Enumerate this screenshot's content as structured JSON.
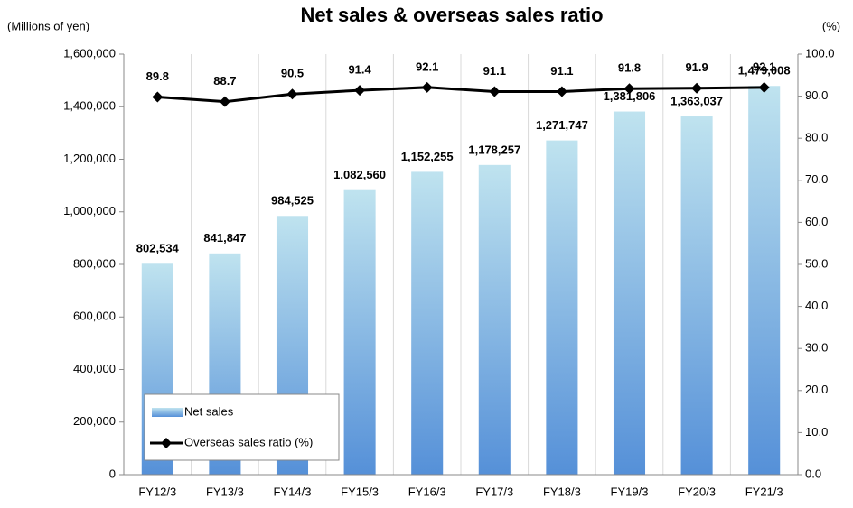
{
  "chart_data": {
    "type": "bar_line",
    "title": "Net sales & overseas sales ratio",
    "y_label": "(Millions of yen)",
    "y2_label": "(%)",
    "categories": [
      "FY12/3",
      "FY13/3",
      "FY14/3",
      "FY15/3",
      "FY16/3",
      "FY17/3",
      "FY18/3",
      "FY19/3",
      "FY20/3",
      "FY21/3"
    ],
    "series": [
      {
        "name": "Net sales",
        "type": "bar",
        "color": "#5590d8",
        "values": [
          802534,
          841847,
          984525,
          1082560,
          1152255,
          1178257,
          1271747,
          1381806,
          1363037,
          1479008
        ],
        "value_labels": [
          "802,534",
          "841,847",
          "984,525",
          "1,082,560",
          "1,152,255",
          "1,178,257",
          "1,271,747",
          "1,381,806",
          "1,363,037",
          "1,479,008"
        ]
      },
      {
        "name": "Overseas sales ratio (%)",
        "type": "line",
        "axis": "y2",
        "color": "#000000",
        "values": [
          89.8,
          88.7,
          90.5,
          91.4,
          92.1,
          91.1,
          91.1,
          91.8,
          91.9,
          92.1
        ]
      }
    ],
    "ylim": [
      0,
      1600000
    ],
    "yticks": [
      0,
      {
        "value": 200000,
        "label": "200,000"
      },
      {
        "value": 400000,
        "label": "400,000"
      },
      {
        "value": 600000,
        "label": "600,000"
      },
      {
        "value": 800000,
        "label": "800,000"
      },
      {
        "value": 1000000,
        "label": "1,000,000"
      },
      {
        "value": 1200000,
        "label": "1,200,000"
      },
      {
        "value": 1400000,
        "label": "1,400,000"
      },
      {
        "value": 1600000,
        "label": "1,600,000"
      }
    ],
    "y2lim": [
      0,
      100
    ],
    "y2ticks": [
      {
        "value": 0,
        "label": "0.0"
      },
      {
        "value": 10,
        "label": "10.0"
      },
      {
        "value": 20,
        "label": "20.0"
      },
      {
        "value": 30,
        "label": "30.0"
      },
      {
        "value": 40,
        "label": "40.0"
      },
      {
        "value": 50,
        "label": "50.0"
      },
      {
        "value": 60,
        "label": "60.0"
      },
      {
        "value": 70,
        "label": "70.0"
      },
      {
        "value": 80,
        "label": "80.0"
      },
      {
        "value": 90,
        "label": "90.0"
      },
      {
        "value": 100,
        "label": "100.0"
      }
    ],
    "grid": false
  }
}
